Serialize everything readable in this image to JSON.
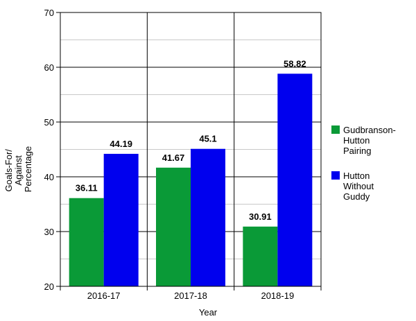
{
  "chart_data": {
    "type": "bar",
    "categories": [
      "2016-17",
      "2017-18",
      "2018-19"
    ],
    "series": [
      {
        "name": "Gudbranson-Hutton Pairing",
        "name_lines": [
          "Gudbranson-",
          "Hutton",
          "Pairing"
        ],
        "color": "#0a9a37",
        "values": [
          36.11,
          41.67,
          30.91
        ]
      },
      {
        "name": "Hutton Without Guddy",
        "name_lines": [
          "Hutton",
          "Without",
          "Guddy"
        ],
        "color": "#0000ee",
        "values": [
          44.19,
          45.1,
          58.82
        ]
      }
    ],
    "data_labels": [
      [
        "36.11",
        "41.67",
        "30.91"
      ],
      [
        "44.19",
        "45.1",
        "58.82"
      ]
    ],
    "xlabel": "Year",
    "ylabel_lines": [
      "Goals-For/",
      "Against",
      "Percentage"
    ],
    "ylim": [
      20,
      70
    ],
    "yticks": [
      20,
      30,
      40,
      50,
      60,
      70
    ],
    "grid": true,
    "legend_position": "right"
  }
}
